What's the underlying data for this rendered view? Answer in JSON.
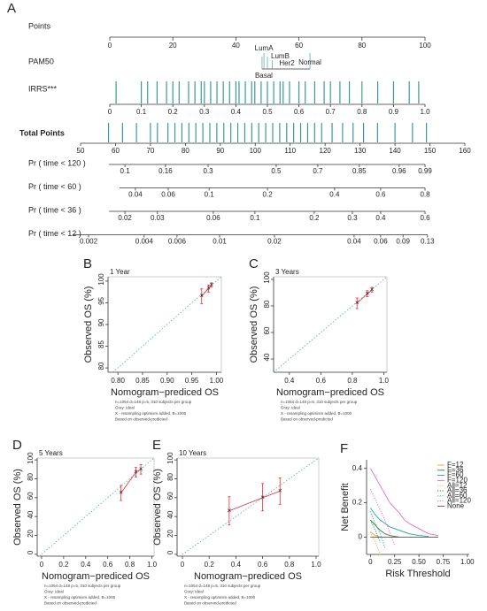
{
  "chart_data": [
    {
      "type": "nomogram",
      "letter": "A",
      "points": {
        "label": "Points",
        "lim": [
          0,
          100
        ],
        "ticks": [
          0,
          20,
          40,
          60,
          80,
          100
        ]
      },
      "pam50": {
        "label": "PAM50",
        "levels": [
          "LumA",
          "LumB",
          "Her2",
          "Normal",
          "Basal"
        ],
        "positions": [
          48.9,
          50,
          51.5,
          63.5,
          48.3
        ]
      },
      "irrs": {
        "label": "IRRS***",
        "ticks": [
          0,
          0.1,
          0.2,
          0.3,
          0.4,
          0.5,
          0.6,
          0.7,
          0.8,
          0.9,
          {
            "value": 1,
            "label": "1.0"
          }
        ],
        "positions": [
          0,
          10,
          20,
          30,
          40,
          50,
          60,
          70,
          80,
          90,
          100
        ],
        "rug": [
          0.02,
          0.1,
          0.12,
          0.15,
          0.18,
          0.2,
          0.22,
          0.25,
          0.27,
          0.29,
          0.3,
          0.32,
          0.34,
          0.36,
          0.38,
          0.4,
          0.41,
          0.43,
          0.45,
          0.46,
          0.48,
          0.5,
          0.52,
          0.54,
          0.55,
          0.57,
          0.6,
          0.62,
          0.65,
          0.68,
          0.7,
          0.73,
          0.76,
          0.8,
          0.85,
          0.9,
          0.95,
          0.98
        ]
      },
      "total_points": {
        "label": "Total Points",
        "lim": [
          50,
          160
        ],
        "ticks": [
          50,
          60,
          70,
          80,
          90,
          100,
          110,
          120,
          130,
          140,
          150,
          160
        ],
        "rug": [
          58,
          62,
          66,
          70,
          72,
          75,
          77,
          79,
          81,
          83,
          85,
          87,
          89,
          91,
          93,
          95,
          97,
          99,
          101,
          103,
          105,
          107,
          109,
          111,
          113,
          115,
          117,
          119,
          122,
          125,
          128,
          131,
          135,
          140,
          145,
          149
        ]
      },
      "probabilities": [
        {
          "label": "Pr ( time < 120 )",
          "ticks": [
            0.1,
            0.16,
            0.3,
            0.5,
            0.7,
            0.85,
            0.96,
            0.99
          ],
          "positions": [
            62.7,
            74.3,
            86.5,
            106,
            117.9,
            129.8,
            141.2,
            148.6
          ]
        },
        {
          "label": "Pr ( time < 60 )",
          "ticks": [
            0.04,
            0.06,
            0.1,
            0.2,
            0.4,
            0.6,
            0.8
          ],
          "positions": [
            65.7,
            75.1,
            86.8,
            103.5,
            122.7,
            135.9,
            148.6
          ]
        },
        {
          "label": "Pr ( time < 36 )",
          "ticks": [
            0.02,
            0.03,
            0.06,
            0.1,
            0.2,
            0.3,
            0.4,
            0.6
          ],
          "positions": [
            62.7,
            72,
            88,
            99.9,
            116.9,
            127.8,
            135.9,
            148.6
          ]
        },
        {
          "label": "Pr ( time < 12 )",
          "ticks": [
            0.002,
            0.004,
            0.006,
            0.01,
            0.02,
            0.04,
            0.06,
            0.09,
            0.13
          ],
          "positions": [
            52.3,
            68.2,
            77.6,
            89.8,
            105.5,
            128.3,
            135.9,
            142.3,
            149.3
          ]
        }
      ]
    },
    {
      "type": "calibration",
      "letter": "B",
      "subtitle": "1 Year",
      "xlabel": "Nomogram−prediced OS",
      "ylabel": "Observed OS (%)",
      "xlim": [
        0.78,
        1.01
      ],
      "ylim": [
        79,
        101
      ],
      "xticks": [
        {
          "value": 0.8,
          "label": "0.80"
        },
        0.85,
        {
          "value": 0.9,
          "label": "0.90"
        },
        0.95,
        {
          "value": 1,
          "label": "1.00"
        }
      ],
      "yticks": [
        80,
        85,
        90,
        95,
        100
      ],
      "x": [
        0.97,
        0.984,
        0.99
      ],
      "values": [
        96.5,
        98.3,
        99.1
      ],
      "lower": [
        94.8,
        97.5,
        98.6
      ],
      "upper": [
        98.2,
        99.1,
        99.6
      ],
      "color": "#e0303a",
      "notes": [
        "n=1054 d=148 p=5, 310 subjects per group",
        "Gray: ideal",
        "X - resampling optimism added, B=1000",
        "Based on observed-predicted"
      ]
    },
    {
      "type": "calibration",
      "letter": "C",
      "subtitle": "3 Years",
      "xlabel": "Nomogram−prediced OS",
      "ylabel": "Observed OS (%)",
      "xlim": [
        0.3,
        1.02
      ],
      "ylim": [
        30,
        102
      ],
      "xticks": [
        0.4,
        0.6,
        0.8,
        {
          "value": 1,
          "label": "1.0"
        }
      ],
      "yticks": [
        40,
        60,
        80,
        100
      ],
      "x": [
        0.83,
        0.895,
        0.925
      ],
      "values": [
        82,
        89,
        92
      ],
      "lower": [
        78,
        87,
        90.5
      ],
      "upper": [
        86,
        91.5,
        94
      ],
      "color": "#e0303a",
      "notes": [
        "n=1054 d=148 p=5, 310 subjects per group",
        "Gray: ideal",
        "X - resampling optimism added, B=1000",
        "Based on observed-predicted"
      ]
    },
    {
      "type": "calibration",
      "letter": "D",
      "subtitle": "5 Years",
      "xlabel": "Nomogram−prediced OS",
      "ylabel": "Observed OS (%)",
      "xlim": [
        -0.04,
        1.02
      ],
      "ylim": [
        -2,
        102
      ],
      "xticks": [
        0,
        0.2,
        0.4,
        0.6,
        0.8,
        {
          "value": 1,
          "label": "1.0"
        }
      ],
      "yticks": [
        0,
        20,
        40,
        60,
        80,
        100
      ],
      "x": [
        0.72,
        0.855,
        0.9
      ],
      "values": [
        65,
        87,
        90
      ],
      "lower": [
        57,
        82,
        85
      ],
      "upper": [
        73,
        92,
        95
      ],
      "color": "#e0303a",
      "notes": [
        "n=1054 d=148 p=5, 310 subjects per group",
        "Gray: ideal",
        "X - resampling optimism added, B=1000",
        "Based on observed-predicted"
      ]
    },
    {
      "type": "calibration",
      "letter": "E",
      "subtitle": "10 Years",
      "xlabel": "Nomogram−prediced OS",
      "ylabel": "Observed OS (%)",
      "xlim": [
        -0.04,
        1.02
      ],
      "ylim": [
        -2,
        102
      ],
      "xticks": [
        0,
        0.2,
        0.4,
        0.6,
        0.8,
        {
          "value": 1,
          "label": "1.0"
        }
      ],
      "yticks": [
        0,
        20,
        40,
        60,
        80,
        100
      ],
      "x": [
        0.35,
        0.6,
        0.73
      ],
      "values": [
        46,
        60,
        67
      ],
      "lower": [
        31,
        46,
        53
      ],
      "upper": [
        61,
        75,
        81
      ],
      "color": "#e0303a",
      "notes": [
        "n=1054 d=148 p=5, 310 subjects per group",
        "Gray: ideal",
        "X - resampling optimism added, B=1000",
        "Based on observed-predicted"
      ]
    },
    {
      "type": "dca",
      "letter": "F",
      "xlabel": "Risk Threshold",
      "ylabel": "Net Benefit",
      "xlim": [
        -0.04,
        1.02
      ],
      "ylim": [
        -0.1,
        0.45
      ],
      "xticks": [
        0,
        0.25,
        {
          "value": 0.5,
          "label": "0.50"
        },
        0.75,
        {
          "value": 1,
          "label": "1.00"
        }
      ],
      "yticks": [
        0,
        0.2,
        0.4
      ],
      "x": [
        0,
        0.05,
        0.1,
        0.15,
        0.2,
        0.25,
        0.3,
        0.35,
        0.4,
        0.5,
        0.6,
        0.7
      ],
      "series": [
        {
          "name": "F=12",
          "color": "#f0a030",
          "style": "solid",
          "values": [
            0.03,
            0.01,
            0,
            null,
            null,
            null,
            null,
            null,
            null,
            null,
            null,
            null
          ]
        },
        {
          "name": "F=36",
          "color": "#2e7d32",
          "style": "solid",
          "values": [
            0.1,
            0.07,
            0.04,
            0.02,
            0.01,
            0.005,
            0,
            null,
            null,
            null,
            null,
            null
          ]
        },
        {
          "name": "F=60",
          "color": "#1aa0a8",
          "style": "solid",
          "values": [
            0.17,
            0.13,
            0.1,
            0.08,
            0.06,
            0.05,
            0.04,
            0.03,
            0.02,
            0.01,
            0.005,
            null
          ]
        },
        {
          "name": "F=120",
          "color": "#e070c0",
          "style": "solid",
          "values": [
            0.4,
            0.35,
            0.3,
            0.25,
            0.2,
            0.17,
            0.14,
            0.1,
            0.08,
            0.05,
            0.02,
            0.01
          ]
        },
        {
          "name": "All=12",
          "color": "#f0a030",
          "style": "dotted",
          "values": [
            0.03,
            -0.03,
            -0.1,
            null,
            null,
            null,
            null,
            null,
            null,
            null,
            null,
            null
          ]
        },
        {
          "name": "All=36",
          "color": "#2e7d32",
          "style": "dotted",
          "values": [
            0.1,
            0.04,
            -0.03,
            null,
            null,
            null,
            null,
            null,
            null,
            null,
            null,
            null
          ]
        },
        {
          "name": "All=60",
          "color": "#1aa0a8",
          "style": "dotted",
          "values": [
            0.15,
            0.08,
            0.02,
            -0.06,
            null,
            null,
            null,
            null,
            null,
            null,
            null,
            null
          ]
        },
        {
          "name": "All=120",
          "color": "#e070c0",
          "style": "dotted",
          "values": [
            0.28,
            0.22,
            0.16,
            0.1,
            0.03,
            -0.05,
            null,
            null,
            null,
            null,
            null,
            null
          ]
        },
        {
          "name": "None",
          "color": "#555555",
          "style": "solid",
          "values": [
            0,
            0,
            0,
            0,
            0,
            0,
            0,
            0,
            0,
            0,
            0,
            0
          ]
        }
      ]
    }
  ]
}
